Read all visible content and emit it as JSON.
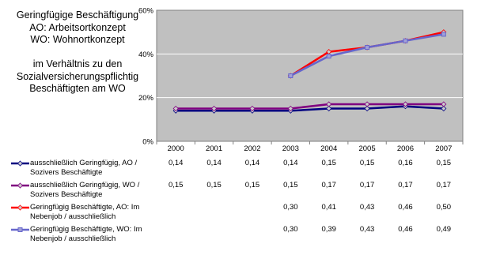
{
  "title_lines": [
    "Geringfügige Beschäftigung",
    "AO: Arbeitsortkonzept",
    "WO: Wohnortkonzept",
    "",
    "im Verhältnis zu den",
    "Sozialversicherungspflichtig",
    "Beschäftigten am WO"
  ],
  "chart_data": {
    "type": "line",
    "categories": [
      "2000",
      "2001",
      "2002",
      "2003",
      "2004",
      "2005",
      "2006",
      "2007"
    ],
    "ylim": [
      0,
      0.6
    ],
    "yticks": [
      "0%",
      "20%",
      "40%",
      "60%"
    ],
    "grid": true,
    "plot_background": "#c0c0c0",
    "series": [
      {
        "name_lines": [
          "ausschließlich Geringfügig, AO /",
          "Sozivers Beschäftigte"
        ],
        "color": "#000080",
        "marker": "diamond",
        "values": [
          0.14,
          0.14,
          0.14,
          0.14,
          0.15,
          0.15,
          0.16,
          0.15
        ],
        "labels": [
          "0,14",
          "0,14",
          "0,14",
          "0,14",
          "0,15",
          "0,15",
          "0,16",
          "0,15"
        ]
      },
      {
        "name_lines": [
          "ausschließlich Geringfügig, WO /",
          "Sozivers Beschäftigte"
        ],
        "color": "#800080",
        "marker": "diamond",
        "values": [
          0.15,
          0.15,
          0.15,
          0.15,
          0.17,
          0.17,
          0.17,
          0.17
        ],
        "labels": [
          "0,15",
          "0,15",
          "0,15",
          "0,15",
          "0,17",
          "0,17",
          "0,17",
          "0,17"
        ]
      },
      {
        "name_lines": [
          "Geringfügig Beschäftigte, AO: Im",
          "Nebenjob / ausschließlich"
        ],
        "color": "#ff0000",
        "marker": "diamond",
        "values": [
          null,
          null,
          null,
          0.3,
          0.41,
          0.43,
          0.46,
          0.5
        ],
        "labels": [
          "",
          "",
          "",
          "0,30",
          "0,41",
          "0,43",
          "0,46",
          "0,50"
        ]
      },
      {
        "name_lines": [
          "Geringfügig Beschäftigte, WO: Im",
          "Nebenjob / ausschließlich"
        ],
        "color": "#6666cc",
        "marker": "square",
        "values": [
          null,
          null,
          null,
          0.3,
          0.39,
          0.43,
          0.46,
          0.49
        ],
        "labels": [
          "",
          "",
          "",
          "0,30",
          "0,39",
          "0,43",
          "0,46",
          "0,49"
        ]
      }
    ]
  }
}
